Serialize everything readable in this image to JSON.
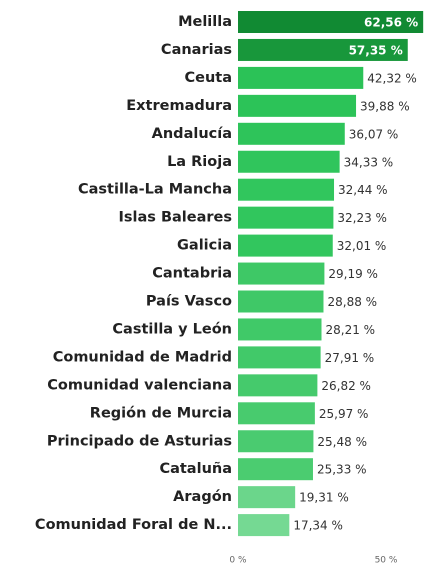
{
  "chart_data": {
    "type": "hbar",
    "categories": [
      "Melilla",
      "Canarias",
      "Ceuta",
      "Extremadura",
      "Andalucía",
      "La Rioja",
      "Castilla-La Mancha",
      "Islas Baleares",
      "Galicia",
      "Cantabria",
      "País Vasco",
      "Castilla y León",
      "Comunidad de Madrid",
      "Comunidad valenciana",
      "Región de Murcia",
      "Principado de Asturias",
      "Cataluña",
      "Aragón",
      "Comunidad Foral de N..."
    ],
    "values": [
      62.56,
      57.35,
      42.32,
      39.88,
      36.07,
      34.33,
      32.44,
      32.23,
      32.01,
      29.19,
      28.88,
      28.21,
      27.91,
      26.82,
      25.97,
      25.48,
      25.33,
      19.31,
      17.34
    ],
    "value_labels": [
      "62,56 %",
      "57,35 %",
      "42,32 %",
      "39,88 %",
      "36,07 %",
      "34,33 %",
      "32,44 %",
      "32,23 %",
      "32,01 %",
      "29,19 %",
      "28,88 %",
      "28,21 %",
      "27,91 %",
      "26,82 %",
      "25,97 %",
      "25,48 %",
      "25,33 %",
      "19,31 %",
      "17,34 %"
    ],
    "colors": [
      "#118a33",
      "#18973b",
      "#2bc257",
      "#2cc358",
      "#2ec45a",
      "#30c55c",
      "#31c65d",
      "#31c65d",
      "#32c65e",
      "#3ec866",
      "#3fc867",
      "#40c968",
      "#41c969",
      "#45ca6c",
      "#48cb6e",
      "#4acb70",
      "#4bcc70",
      "#6bd68b",
      "#75d993"
    ],
    "xlim": [
      0,
      66
    ],
    "xticks": [
      {
        "value": 0,
        "label": "0 %"
      },
      {
        "value": 50,
        "label": "50 %"
      }
    ]
  }
}
